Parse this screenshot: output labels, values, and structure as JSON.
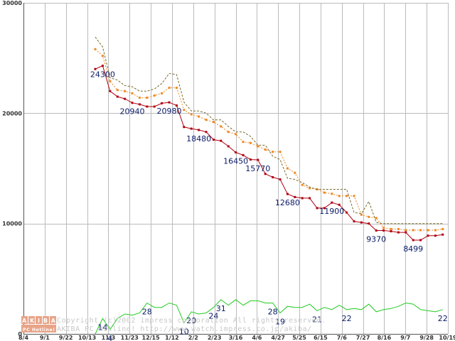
{
  "chart_data": {
    "type": "line",
    "title": "",
    "xlabel": "",
    "ylabel": "",
    "ylim": [
      0,
      30000
    ],
    "y_ticks": [
      "0",
      "10000",
      "20000",
      "30000"
    ],
    "x_ticks": [
      "8/4",
      "9/1",
      "9/22",
      "10/13",
      "11/3",
      "11/23",
      "12/15",
      "1/12",
      "2/2",
      "2/23",
      "3/16",
      "4/6",
      "4/27",
      "5/25",
      "6/15",
      "7/6",
      "7/27",
      "8/16",
      "9/7",
      "9/28",
      "10/19"
    ],
    "grid": true,
    "legend": "none",
    "series": [
      {
        "name": "average price",
        "color": "#b00010",
        "style": "solid-markers",
        "values": [
          24000,
          24300,
          22000,
          21500,
          21300,
          20940,
          20800,
          20600,
          20600,
          20900,
          20980,
          20700,
          18750,
          18600,
          18480,
          18300,
          17600,
          17500,
          17000,
          16450,
          16200,
          15800,
          15770,
          14500,
          14200,
          14000,
          12680,
          12400,
          12300,
          12300,
          11400,
          11400,
          11900,
          11700,
          11000,
          10200,
          10100,
          10000,
          9370,
          9370,
          9300,
          9200,
          9200,
          8499,
          8499,
          8900,
          8900,
          9000
        ]
      },
      {
        "name": "mean price",
        "color": "#ee8822",
        "style": "dotted-squares",
        "values": [
          25800,
          25200,
          22900,
          22100,
          22000,
          21800,
          21400,
          21400,
          21600,
          21800,
          22300,
          22300,
          20300,
          19900,
          19700,
          19400,
          19200,
          18800,
          18300,
          18100,
          17400,
          17300,
          17000,
          16700,
          16500,
          16500,
          15000,
          14600,
          13500,
          13200,
          13100,
          12800,
          12700,
          12500,
          12500,
          12500,
          10800,
          10600,
          10500,
          9600,
          9500,
          9500,
          9400,
          9400,
          9400,
          9400,
          9400,
          9500
        ]
      },
      {
        "name": "maximum price",
        "color": "#776a2a",
        "style": "dashed",
        "values": [
          26900,
          26000,
          23200,
          23000,
          22500,
          22400,
          22000,
          22000,
          22200,
          22700,
          23600,
          23500,
          21000,
          20200,
          20200,
          20000,
          19400,
          19400,
          18800,
          18300,
          18300,
          17900,
          17100,
          17100,
          16100,
          15800,
          14100,
          14000,
          13700,
          13300,
          13100,
          13100,
          13100,
          13100,
          13100,
          11000,
          10900,
          12000,
          10100,
          10000,
          10000,
          10000,
          10000,
          10000,
          10000,
          10000,
          10000,
          10000
        ]
      },
      {
        "name": "shop count",
        "color": "#22cc22",
        "style": "solid",
        "y_scale": "count: 1 = 100 units on the price axis (0-300)",
        "values": [
          0,
          14,
          4,
          14,
          18,
          17,
          19,
          28,
          24,
          24,
          28,
          26,
          10,
          20,
          18,
          19,
          24,
          31,
          26,
          31,
          26,
          30,
          30,
          28,
          28,
          19,
          25,
          24,
          24,
          27,
          21,
          24,
          22,
          26,
          22,
          23,
          22,
          27,
          20,
          22,
          23,
          25,
          28,
          27,
          22,
          21,
          20,
          22
        ]
      }
    ],
    "annotations": [
      {
        "index": 1,
        "series": 0,
        "text": "24300"
      },
      {
        "index": 5,
        "series": 0,
        "text": "20940"
      },
      {
        "index": 10,
        "series": 0,
        "text": "20980"
      },
      {
        "index": 14,
        "series": 0,
        "text": "18480"
      },
      {
        "index": 19,
        "series": 0,
        "text": "16450"
      },
      {
        "index": 22,
        "series": 0,
        "text": "15770"
      },
      {
        "index": 26,
        "series": 0,
        "text": "12680"
      },
      {
        "index": 32,
        "series": 0,
        "text": "11900"
      },
      {
        "index": 38,
        "series": 0,
        "text": "9370"
      },
      {
        "index": 43,
        "series": 0,
        "text": "8499"
      },
      {
        "index": 1,
        "series": 3,
        "text": "14"
      },
      {
        "index": 2,
        "series": 3,
        "text": "4"
      },
      {
        "index": 7,
        "series": 3,
        "text": "28"
      },
      {
        "index": 12,
        "series": 3,
        "text": "10"
      },
      {
        "index": 13,
        "series": 3,
        "text": "20"
      },
      {
        "index": 16,
        "series": 3,
        "text": "24"
      },
      {
        "index": 17,
        "series": 3,
        "text": "31"
      },
      {
        "index": 24,
        "series": 3,
        "text": "28"
      },
      {
        "index": 25,
        "series": 3,
        "text": "19"
      },
      {
        "index": 30,
        "series": 3,
        "text": "21"
      },
      {
        "index": 34,
        "series": 3,
        "text": "22"
      },
      {
        "index": 47,
        "series": 3,
        "text": "22"
      }
    ]
  },
  "watermark": {
    "logo_top": "AKIBA",
    "logo_bottom": "PC Hotline!",
    "line1": "Copyright (c)2002 impress corporation All rights reserved.",
    "line2": "AKIBA PC Hotline!  http://www.watch.impress.co.jp/akiba/"
  }
}
